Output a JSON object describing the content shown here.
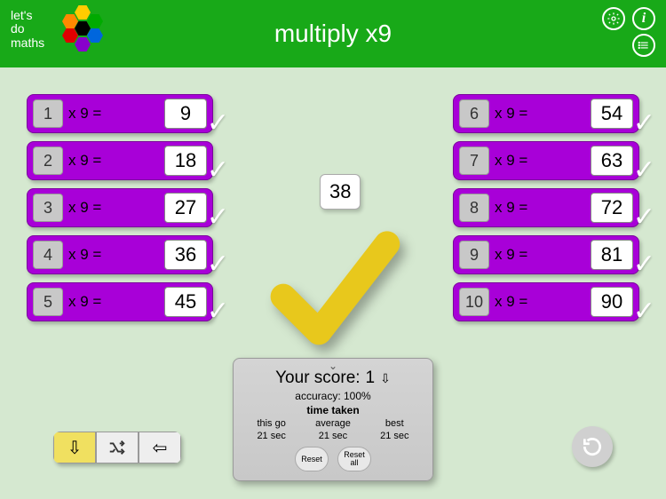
{
  "header": {
    "logo_text": "let's\ndo\nmaths",
    "title": "multiply x9",
    "logo_hex_colors": [
      "#ffcc00",
      "#ff8800",
      "#00aa00",
      "#e00000",
      "#8800cc",
      "#0066dd",
      "#000000"
    ],
    "icons": {
      "settings": "settings",
      "info": "i",
      "list": "≡"
    }
  },
  "colors": {
    "header_bg": "#18a918",
    "play_bg": "#d5e8d0",
    "card_bg": "#a800d8",
    "operand_bg": "#c8c8c8",
    "answer_bg": "#ffffff",
    "big_check": "#e8c81c",
    "small_check": "#ffffff",
    "control_active": "#f0e060"
  },
  "problems_left": [
    {
      "a": "1",
      "op": "x 9  =",
      "ans": "9"
    },
    {
      "a": "2",
      "op": "x 9  =",
      "ans": "18"
    },
    {
      "a": "3",
      "op": "x 9  =",
      "ans": "27"
    },
    {
      "a": "4",
      "op": "x 9  =",
      "ans": "36"
    },
    {
      "a": "5",
      "op": "x 9  =",
      "ans": "45"
    }
  ],
  "problems_right": [
    {
      "a": "6",
      "op": "x 9  =",
      "ans": "54"
    },
    {
      "a": "7",
      "op": "x 9  =",
      "ans": "63"
    },
    {
      "a": "8",
      "op": "x 9  =",
      "ans": "72"
    },
    {
      "a": "9",
      "op": "x 9  =",
      "ans": "81"
    },
    {
      "a": "10",
      "op": "x 9  =",
      "ans": "90"
    }
  ],
  "center": {
    "float_value": "38",
    "checkmark_color": "#e8c81c"
  },
  "score": {
    "title_prefix": "Your score:",
    "score_value": "1",
    "accuracy_label": "accuracy:",
    "accuracy_value": "100%",
    "time_header": "time taken",
    "cols": [
      {
        "h": "this go",
        "v": "21 sec"
      },
      {
        "h": "average",
        "v": "21 sec"
      },
      {
        "h": "best",
        "v": "21 sec"
      }
    ],
    "reset_label": "Reset",
    "reset_all_label": "Reset all"
  },
  "controls": {
    "down": "⇩",
    "shuffle": "⤨",
    "back": "⇦"
  }
}
